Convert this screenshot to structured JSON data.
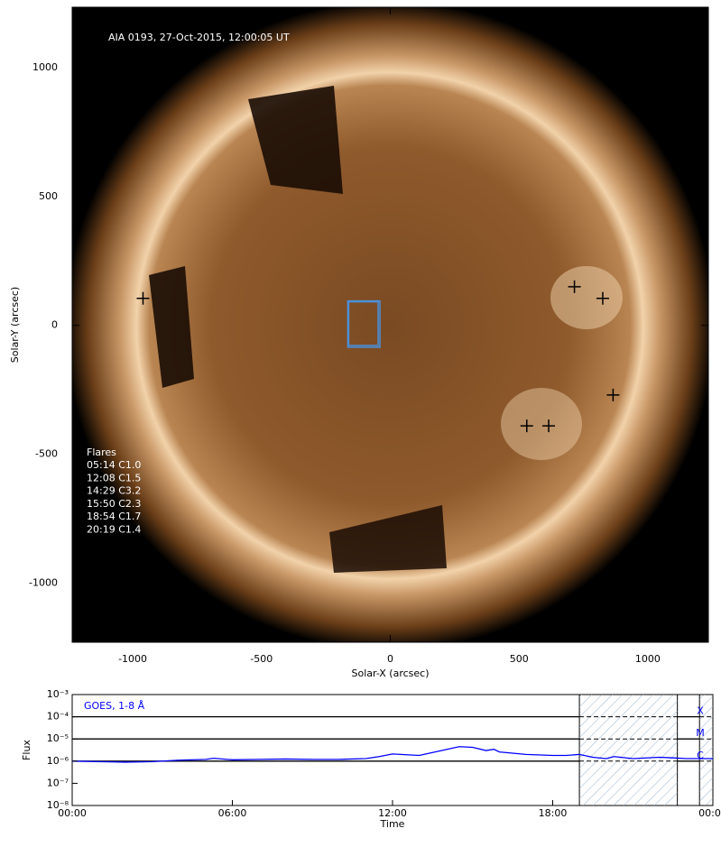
{
  "chart_data": [
    {
      "type": "scatter",
      "annotation": "AIA 0193, 27-Oct-2015, 12:00:05 UT",
      "xlabel": "Solar-X (arcsec)",
      "ylabel": "Solar-Y (arcsec)",
      "xlim": [
        -1235,
        1235
      ],
      "ylim": [
        -1230,
        1235
      ],
      "xticks": [
        -1000,
        -500,
        0,
        500,
        1000
      ],
      "yticks": [
        -1000,
        -500,
        0,
        500,
        1000
      ],
      "x": [
        -960,
        715,
        825,
        865,
        530,
        615
      ],
      "y": [
        105,
        150,
        105,
        -270,
        -390,
        -390
      ],
      "marker_color": "#000000",
      "box": {
        "x": [
          -165,
          -40
        ],
        "y": [
          -85,
          95
        ],
        "color": "#4a90d9"
      },
      "flares_title": "Flares",
      "flares": [
        "05:14 C1.0",
        "12:08 C1.5",
        "14:29 C3.2",
        "15:50 C2.3",
        "18:54 C1.7",
        "20:19 C1.4"
      ]
    },
    {
      "type": "line",
      "title": "GOES, 1-8 Å",
      "xlabel": "Time",
      "ylabel": "Flux",
      "xlim": [
        0,
        24
      ],
      "xticks": [
        {
          "value": 0,
          "label": "00:00"
        },
        {
          "value": 6,
          "label": "06:00"
        },
        {
          "value": 12,
          "label": "12:00"
        },
        {
          "value": 18,
          "label": "18:00"
        },
        {
          "value": 24,
          "label": "00:00"
        }
      ],
      "log_y": true,
      "ylim": [
        1e-08,
        0.001
      ],
      "yticks": [
        {
          "value": 1e-08,
          "label": "10⁻⁸"
        },
        {
          "value": 1e-07,
          "label": "10⁻⁷"
        },
        {
          "value": 1e-06,
          "label": "10⁻⁶"
        },
        {
          "value": 1e-05,
          "label": "10⁻⁵"
        },
        {
          "value": 0.0001,
          "label": "10⁻⁴"
        },
        {
          "value": 0.001,
          "label": "10⁻³"
        }
      ],
      "class_levels": [
        {
          "value": 0.0001,
          "label": "X"
        },
        {
          "value": 1e-05,
          "label": "M"
        },
        {
          "value": 1e-06,
          "label": "C"
        }
      ],
      "shaded": [
        [
          19,
          22.67
        ],
        [
          23.5,
          24
        ]
      ],
      "x": [
        0,
        1,
        2,
        3,
        4,
        5,
        5.3,
        6,
        7,
        8,
        9,
        10,
        11,
        11.5,
        12,
        13,
        14,
        14.5,
        15,
        15.5,
        15.8,
        16,
        17,
        18,
        18.5,
        19,
        19.5,
        20,
        20.3,
        21,
        22,
        22.5,
        23,
        24
      ],
      "series": [
        {
          "name": "GOES, 1-8 Å",
          "color": "#0000ff",
          "values": [
            1e-06,
            9.5e-07,
            9e-07,
            9.5e-07,
            1.1e-06,
            1.2e-06,
            1.35e-06,
            1.15e-06,
            1.2e-06,
            1.25e-06,
            1.2e-06,
            1.2e-06,
            1.3e-06,
            1.6e-06,
            2.1e-06,
            1.8e-06,
            3.3e-06,
            4.5e-06,
            4.2e-06,
            3e-06,
            3.4e-06,
            2.6e-06,
            2e-06,
            1.8e-06,
            1.8e-06,
            2e-06,
            1.5e-06,
            1.3e-06,
            1.6e-06,
            1.3e-06,
            1.5e-06,
            1.4e-06,
            1.3e-06,
            1.3e-06
          ]
        }
      ]
    }
  ]
}
